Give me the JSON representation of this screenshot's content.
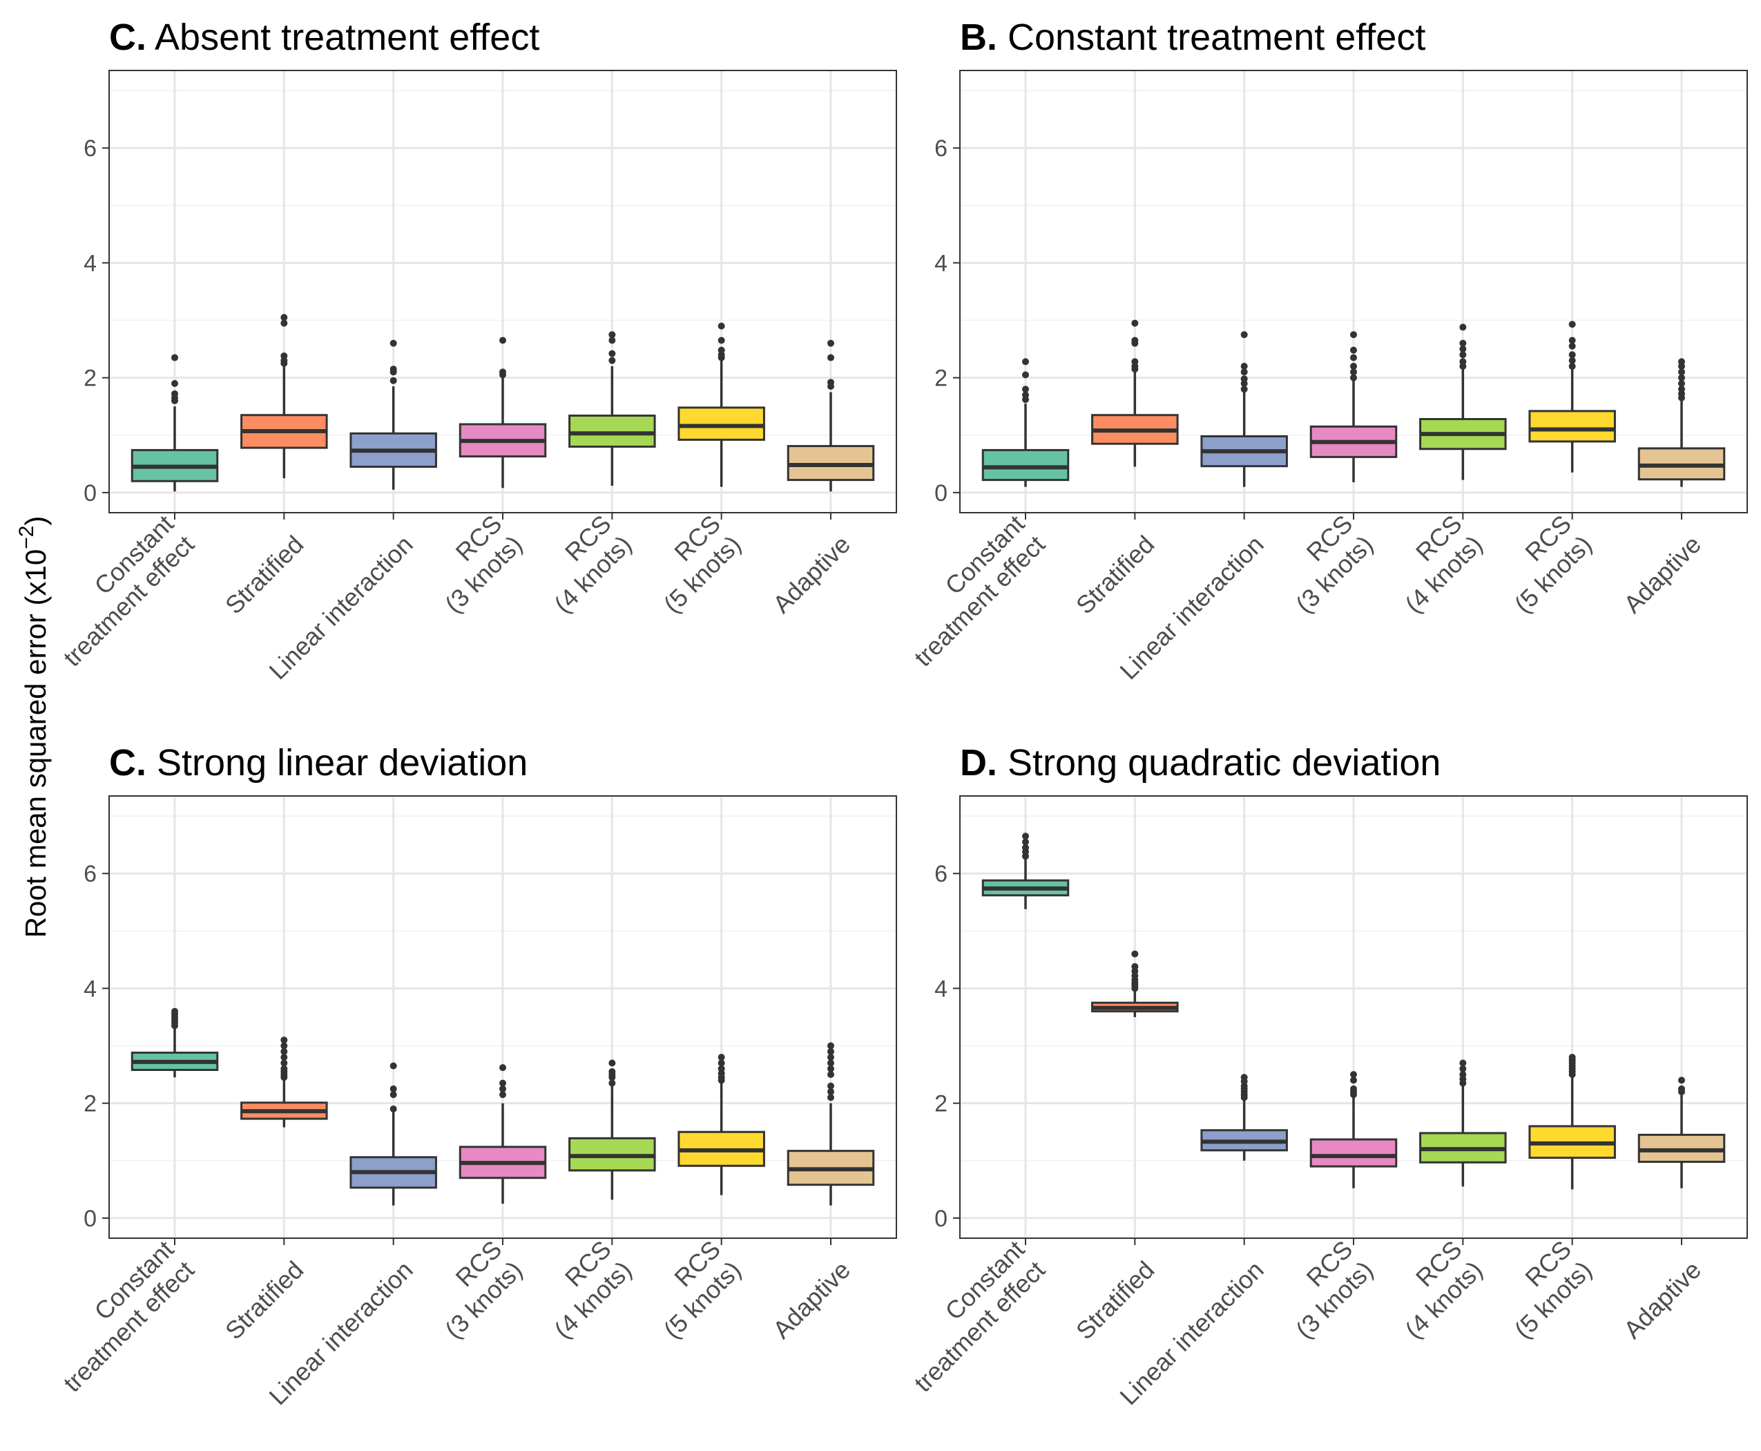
{
  "chart_data": {
    "type": "box",
    "ylabel_main": "Root mean squared error (x10",
    "ylabel_exp": "−2",
    "ylabel_close": ")",
    "ylim": [
      -0.35,
      7.35
    ],
    "yticks": [
      0,
      2,
      4,
      6
    ],
    "categories": [
      [
        "Constant",
        "treatment effect"
      ],
      [
        "Stratified"
      ],
      [
        "Linear interaction"
      ],
      [
        "RCS",
        "(3 knots)"
      ],
      [
        "RCS",
        "(4 knots)"
      ],
      [
        "RCS",
        "(5 knots)"
      ],
      [
        "Adaptive"
      ]
    ],
    "colors": [
      "#66c2a5",
      "#fc8d62",
      "#8da0cb",
      "#e78ac3",
      "#a6d854",
      "#ffd92f",
      "#e5c494"
    ],
    "panels": [
      {
        "letter": "C.",
        "title": "Absent treatment effect",
        "boxes": [
          {
            "low": 0.02,
            "q1": 0.2,
            "median": 0.45,
            "q3": 0.74,
            "high": 1.5,
            "outliers": [
              1.6,
              1.65,
              1.72,
              1.9,
              2.35
            ]
          },
          {
            "low": 0.25,
            "q1": 0.78,
            "median": 1.07,
            "q3": 1.35,
            "high": 2.2,
            "outliers": [
              2.25,
              2.3,
              2.38,
              2.95,
              3.05
            ]
          },
          {
            "low": 0.05,
            "q1": 0.45,
            "median": 0.73,
            "q3": 1.03,
            "high": 1.85,
            "outliers": [
              1.95,
              2.1,
              2.15,
              2.6
            ]
          },
          {
            "low": 0.08,
            "q1": 0.63,
            "median": 0.9,
            "q3": 1.19,
            "high": 2.0,
            "outliers": [
              2.05,
              2.1,
              2.65
            ]
          },
          {
            "low": 0.12,
            "q1": 0.8,
            "median": 1.03,
            "q3": 1.34,
            "high": 2.2,
            "outliers": [
              2.3,
              2.42,
              2.65,
              2.75
            ]
          },
          {
            "low": 0.1,
            "q1": 0.92,
            "median": 1.16,
            "q3": 1.48,
            "high": 2.3,
            "outliers": [
              2.35,
              2.4,
              2.48,
              2.65,
              2.9
            ]
          },
          {
            "low": 0.02,
            "q1": 0.22,
            "median": 0.48,
            "q3": 0.81,
            "high": 1.75,
            "outliers": [
              1.85,
              1.92,
              2.35,
              2.6
            ]
          }
        ]
      },
      {
        "letter": "B.",
        "title": "Constant treatment effect",
        "boxes": [
          {
            "low": 0.1,
            "q1": 0.22,
            "median": 0.44,
            "q3": 0.74,
            "high": 1.55,
            "outliers": [
              1.62,
              1.7,
              1.8,
              2.05,
              2.28
            ]
          },
          {
            "low": 0.45,
            "q1": 0.85,
            "median": 1.08,
            "q3": 1.35,
            "high": 2.1,
            "outliers": [
              2.15,
              2.2,
              2.28,
              2.6,
              2.65,
              2.95
            ]
          },
          {
            "low": 0.1,
            "q1": 0.46,
            "median": 0.72,
            "q3": 0.98,
            "high": 1.75,
            "outliers": [
              1.8,
              1.9,
              1.98,
              2.1,
              2.2,
              2.75
            ]
          },
          {
            "low": 0.18,
            "q1": 0.62,
            "median": 0.88,
            "q3": 1.15,
            "high": 1.95,
            "outliers": [
              2.0,
              2.1,
              2.2,
              2.35,
              2.48,
              2.75
            ]
          },
          {
            "low": 0.22,
            "q1": 0.76,
            "median": 1.02,
            "q3": 1.28,
            "high": 2.15,
            "outliers": [
              2.2,
              2.28,
              2.4,
              2.5,
              2.6,
              2.88
            ]
          },
          {
            "low": 0.35,
            "q1": 0.89,
            "median": 1.1,
            "q3": 1.42,
            "high": 2.15,
            "outliers": [
              2.2,
              2.3,
              2.4,
              2.55,
              2.65,
              2.93
            ]
          },
          {
            "low": 0.1,
            "q1": 0.23,
            "median": 0.47,
            "q3": 0.77,
            "high": 1.6,
            "outliers": [
              1.65,
              1.72,
              1.8,
              1.9,
              2.0,
              2.1,
              2.2,
              2.28
            ]
          }
        ]
      },
      {
        "letter": "C.",
        "title": "Strong linear deviation",
        "boxes": [
          {
            "low": 2.45,
            "q1": 2.58,
            "median": 2.72,
            "q3": 2.88,
            "high": 3.3,
            "outliers": [
              3.35,
              3.4,
              3.45,
              3.5,
              3.55,
              3.6
            ]
          },
          {
            "low": 1.58,
            "q1": 1.73,
            "median": 1.86,
            "q3": 2.01,
            "high": 2.42,
            "outliers": [
              2.45,
              2.5,
              2.55,
              2.6,
              2.7,
              2.8,
              2.9,
              3.0,
              3.1
            ]
          },
          {
            "low": 0.22,
            "q1": 0.53,
            "median": 0.8,
            "q3": 1.06,
            "high": 1.85,
            "outliers": [
              1.9,
              2.15,
              2.25,
              2.65
            ]
          },
          {
            "low": 0.25,
            "q1": 0.7,
            "median": 0.96,
            "q3": 1.24,
            "high": 2.0,
            "outliers": [
              2.15,
              2.25,
              2.35,
              2.62
            ]
          },
          {
            "low": 0.32,
            "q1": 0.83,
            "median": 1.08,
            "q3": 1.39,
            "high": 2.3,
            "outliers": [
              2.35,
              2.45,
              2.5,
              2.55,
              2.7
            ]
          },
          {
            "low": 0.4,
            "q1": 0.91,
            "median": 1.18,
            "q3": 1.5,
            "high": 2.35,
            "outliers": [
              2.4,
              2.45,
              2.52,
              2.6,
              2.7,
              2.8
            ]
          },
          {
            "low": 0.22,
            "q1": 0.58,
            "median": 0.85,
            "q3": 1.17,
            "high": 2.0,
            "outliers": [
              2.1,
              2.2,
              2.3,
              2.5,
              2.6,
              2.7,
              2.8,
              2.9,
              3.0
            ]
          }
        ]
      },
      {
        "letter": "D.",
        "title": "Strong quadratic deviation",
        "boxes": [
          {
            "low": 5.38,
            "q1": 5.62,
            "median": 5.74,
            "q3": 5.88,
            "high": 6.25,
            "outliers": [
              6.3,
              6.38,
              6.45,
              6.55,
              6.65
            ]
          },
          {
            "low": 3.5,
            "q1": 3.6,
            "median": 3.66,
            "q3": 3.75,
            "high": 3.95,
            "outliers": [
              4.0,
              4.05,
              4.1,
              4.15,
              4.22,
              4.3,
              4.38,
              4.6
            ]
          },
          {
            "low": 1.0,
            "q1": 1.18,
            "median": 1.33,
            "q3": 1.53,
            "high": 2.05,
            "outliers": [
              2.1,
              2.15,
              2.2,
              2.25,
              2.3,
              2.38,
              2.45
            ]
          },
          {
            "low": 0.52,
            "q1": 0.9,
            "median": 1.08,
            "q3": 1.37,
            "high": 2.1,
            "outliers": [
              2.15,
              2.2,
              2.25,
              2.4,
              2.5
            ]
          },
          {
            "low": 0.55,
            "q1": 0.97,
            "median": 1.2,
            "q3": 1.48,
            "high": 2.3,
            "outliers": [
              2.35,
              2.42,
              2.5,
              2.6,
              2.7
            ]
          },
          {
            "low": 0.5,
            "q1": 1.05,
            "median": 1.3,
            "q3": 1.6,
            "high": 2.45,
            "outliers": [
              2.5,
              2.55,
              2.6,
              2.65,
              2.7,
              2.75,
              2.8
            ]
          },
          {
            "low": 0.52,
            "q1": 0.98,
            "median": 1.18,
            "q3": 1.45,
            "high": 2.15,
            "outliers": [
              2.2,
              2.25,
              2.4
            ]
          }
        ]
      }
    ]
  }
}
